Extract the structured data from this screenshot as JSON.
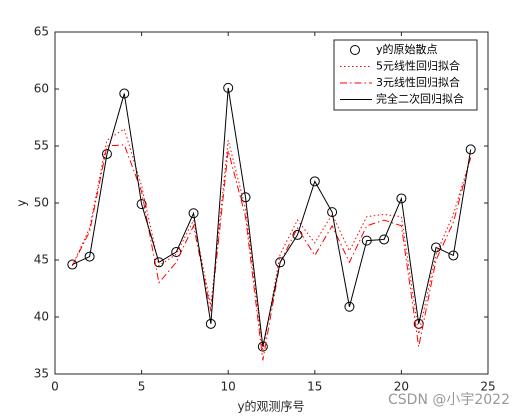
{
  "chart_data": {
    "type": "line",
    "xlabel": "y的观测序号",
    "ylabel": "y",
    "x": [
      1,
      2,
      3,
      4,
      5,
      6,
      7,
      8,
      9,
      10,
      11,
      12,
      13,
      14,
      15,
      16,
      17,
      18,
      19,
      20,
      21,
      22,
      23,
      24
    ],
    "series": [
      {
        "name": "y的原始散点",
        "color": "#000000",
        "style": "circle",
        "values": [
          44.6,
          45.3,
          54.3,
          59.6,
          49.9,
          44.8,
          45.7,
          49.1,
          39.4,
          60.1,
          50.5,
          37.4,
          44.8,
          47.2,
          51.9,
          49.2,
          40.9,
          46.7,
          46.8,
          50.4,
          39.4,
          46.1,
          45.4,
          54.7
        ]
      },
      {
        "name": "5元线性回归拟合",
        "color": "#ff0000",
        "style": "dotted",
        "values": [
          44.5,
          47.8,
          55.5,
          56.5,
          51.5,
          44.5,
          45.5,
          48.5,
          41.0,
          55.5,
          49.5,
          37.0,
          45.5,
          48.5,
          46.5,
          49.0,
          45.8,
          48.8,
          49.0,
          48.8,
          38.5,
          45.5,
          49.0,
          54.0
        ]
      },
      {
        "name": "3元线性回归拟合",
        "color": "#ff0000",
        "style": "dashdot",
        "values": [
          44.5,
          47.5,
          55.0,
          55.1,
          51.0,
          43.0,
          44.8,
          48.0,
          40.5,
          54.6,
          48.8,
          36.2,
          44.8,
          47.8,
          45.4,
          48.0,
          44.8,
          48.0,
          48.5,
          48.0,
          37.4,
          45.0,
          48.3,
          54.0
        ]
      },
      {
        "name": "完全二次回归拟合",
        "color": "#000000",
        "style": "solid",
        "values": [
          44.6,
          45.3,
          54.3,
          59.6,
          49.9,
          44.8,
          45.7,
          49.1,
          39.4,
          60.1,
          50.5,
          37.4,
          44.8,
          47.2,
          51.9,
          49.2,
          40.9,
          46.7,
          46.8,
          50.4,
          39.4,
          46.1,
          45.4,
          54.7
        ]
      }
    ],
    "xlim": [
      0,
      25
    ],
    "xticks": [
      0,
      5,
      10,
      15,
      20,
      25
    ],
    "ylim": [
      35,
      65
    ],
    "yticks": [
      35,
      40,
      45,
      50,
      55,
      60,
      65
    ],
    "legend": "upper-right",
    "watermark": "CSDN @小宇2022"
  }
}
